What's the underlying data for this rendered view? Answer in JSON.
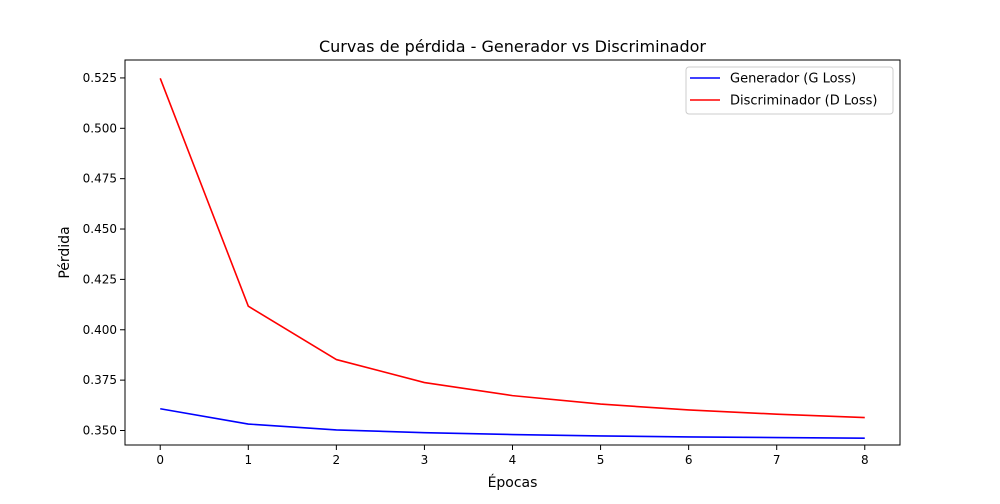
{
  "chart_data": {
    "type": "line",
    "title": "Curvas de pérdida - Generador vs Discriminador",
    "xlabel": "Épocas",
    "ylabel": "Pérdida",
    "x": [
      0,
      1,
      2,
      3,
      4,
      5,
      6,
      7,
      8
    ],
    "xlim": [
      -0.4,
      8.4
    ],
    "ylim": [
      0.3428,
      0.5339
    ],
    "xticks": [
      "0",
      "1",
      "2",
      "3",
      "4",
      "5",
      "6",
      "7",
      "8"
    ],
    "yticks": [
      "0.350",
      "0.375",
      "0.400",
      "0.425",
      "0.450",
      "0.475",
      "0.500",
      "0.525"
    ],
    "grid": false,
    "legend_position": "top-right",
    "series": [
      {
        "name": "Generador (G Loss)",
        "color": "#0000ff",
        "values": [
          0.3608,
          0.3532,
          0.3503,
          0.3489,
          0.348,
          0.3473,
          0.3468,
          0.3465,
          0.3462
        ]
      },
      {
        "name": "Discriminador (D Loss)",
        "color": "#ff0000",
        "values": [
          0.5248,
          0.4117,
          0.3852,
          0.3738,
          0.3673,
          0.3631,
          0.3602,
          0.3581,
          0.3564
        ]
      }
    ]
  }
}
